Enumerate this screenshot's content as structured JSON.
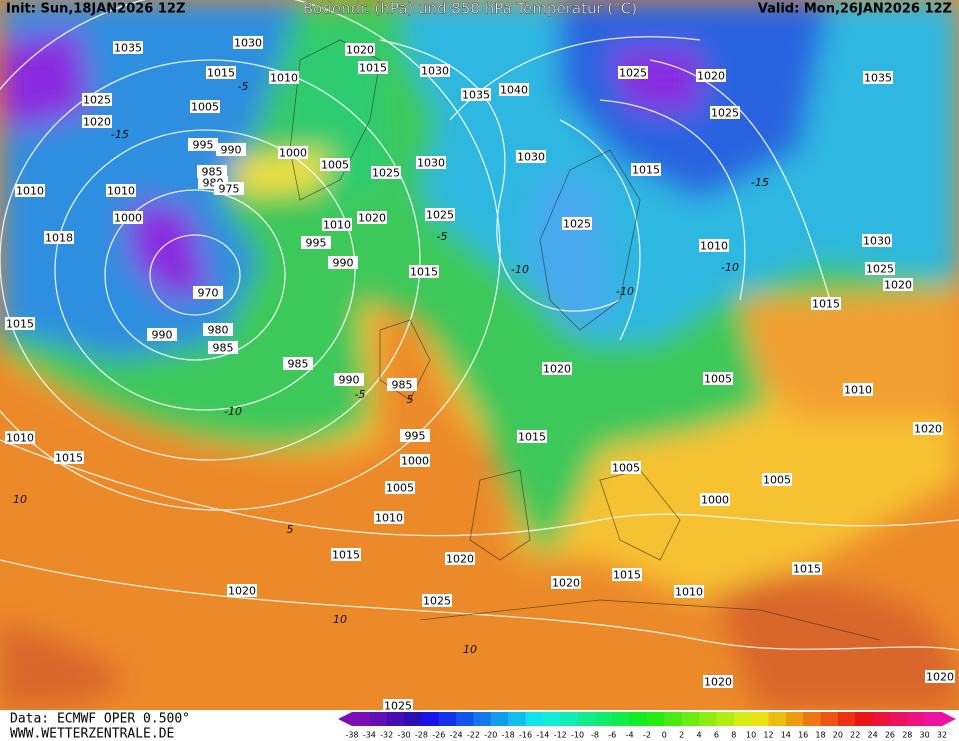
{
  "header": {
    "init": "Init: Sun,18JAN2026 12Z",
    "title": "Bodendr. (hPa) und 850 hPa Temperatur (°C)",
    "valid": "Valid: Mon,26JAN2026 12Z"
  },
  "footer": {
    "source": "Data: ECMWF OPER 0.500°",
    "site": "WWW.WETTERZENTRALE.DE"
  },
  "scale": [
    -38,
    -34,
    -32,
    -30,
    -28,
    -26,
    -24,
    -22,
    -20,
    -18,
    -16,
    -14,
    -12,
    -10,
    -8,
    -6,
    -4,
    -2,
    0,
    2,
    4,
    6,
    8,
    10,
    12,
    14,
    16,
    18,
    20,
    22,
    24,
    26,
    28,
    30,
    32
  ],
  "isobar_labels": [
    "1035",
    "1030",
    "1020",
    "1015",
    "1030",
    "1035",
    "1040",
    "1025",
    "1020",
    "1035",
    "1015",
    "1010",
    "1025",
    "1020",
    "1005",
    "1025",
    "995",
    "990",
    "1000",
    "1005",
    "1030",
    "1025",
    "1030",
    "1015",
    "1010",
    "1010",
    "985",
    "980",
    "975",
    "1000",
    "1010",
    "1020",
    "1025",
    "1025",
    "1018",
    "995",
    "990",
    "1015",
    "1010",
    "1030",
    "1025",
    "1020",
    "1015",
    "970",
    "980",
    "990",
    "985",
    "1015",
    "985",
    "990",
    "985",
    "1020",
    "1005",
    "1010",
    "1010",
    "1015",
    "995",
    "1000",
    "1015",
    "1005",
    "1005",
    "1000",
    "1005",
    "1020",
    "1010",
    "1015",
    "1020",
    "1020",
    "1015",
    "1010",
    "1015",
    "1020",
    "1025",
    "1020",
    "1025",
    "1020"
  ],
  "temperature_labels": [
    "-5",
    "-10",
    "-15",
    "-10",
    "-5",
    "-5",
    "5",
    "10",
    "-10",
    "-15",
    "5",
    "10",
    "10",
    "-10"
  ]
}
